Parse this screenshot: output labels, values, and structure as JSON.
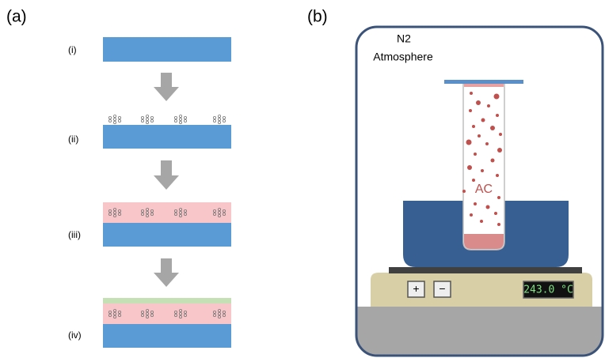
{
  "panel_a": {
    "label": "(a)",
    "steps": [
      "(i)",
      "(ii)",
      "(iii)",
      "(iv)"
    ]
  },
  "panel_b": {
    "label": "(b)",
    "atmosphere": [
      "N2",
      "Atmosphere"
    ],
    "tube_label": "AC",
    "buttons": [
      "+",
      "−"
    ],
    "display": "243.0 °C"
  }
}
